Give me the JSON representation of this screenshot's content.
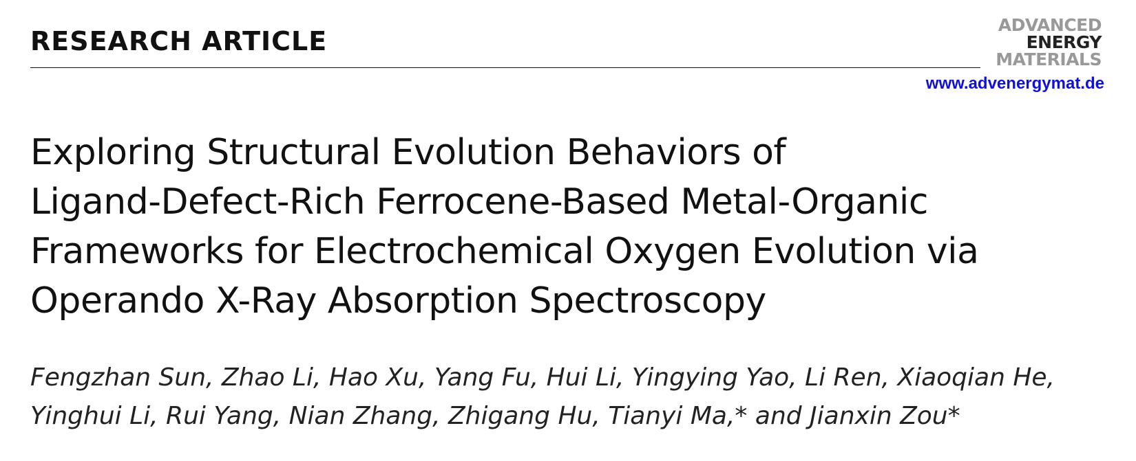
{
  "header": {
    "label": "RESEARCH ARTICLE",
    "journal_logo": [
      "ADVANCED",
      "ENERGY",
      "MATERIALS"
    ],
    "url": "www.advenergymat.de"
  },
  "title": {
    "lines": [
      "Exploring Structural Evolution Behaviors of",
      "Ligand-Defect-Rich Ferrocene-Based Metal-Organic",
      "Frameworks for Electrochemical Oxygen Evolution via",
      "Operando X-Ray Absorption Spectroscopy"
    ]
  },
  "authors": {
    "lines": [
      "Fengzhan Sun, Zhao Li, Hao Xu, Yang Fu, Hui Li, Yingying Yao, Li Ren, Xiaoqian He,",
      "Yinghui Li, Rui Yang, Nian Zhang, Zhigang Hu, Tianyi Ma,* and Jianxin Zou*"
    ]
  }
}
